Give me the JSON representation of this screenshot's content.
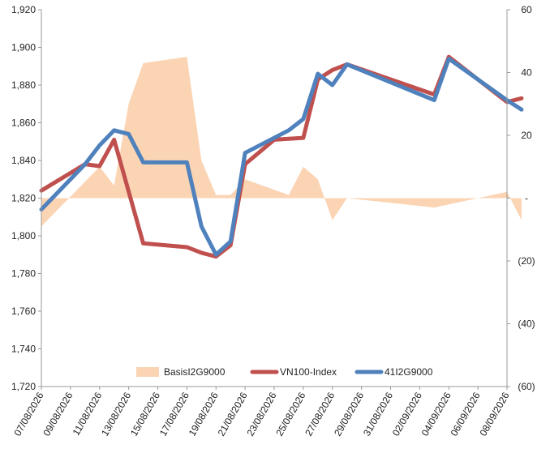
{
  "chart_data": {
    "type": "line",
    "title": "",
    "xlabel": "",
    "ylabel": "",
    "y_left": {
      "ylim": [
        1720,
        1920
      ],
      "ticks": [
        1720,
        1740,
        1760,
        1780,
        1800,
        1820,
        1840,
        1860,
        1880,
        1900,
        1920
      ],
      "tick_labels": [
        "1,720",
        "1,740",
        "1,760",
        "1,780",
        "1,800",
        "1,820",
        "1,840",
        "1,860",
        "1,880",
        "1,900",
        "1,920"
      ]
    },
    "y_right": {
      "ylim": [
        -60,
        60
      ],
      "ticks": [
        -60,
        -40,
        -20,
        0,
        20,
        40,
        60
      ],
      "tick_labels": [
        "(60)",
        "(40)",
        "(20)",
        "-",
        "20",
        "40",
        "60"
      ]
    },
    "x": [
      "07/08/2026",
      "08/08/2026",
      "09/08/2026",
      "10/08/2026",
      "11/08/2026",
      "12/08/2026",
      "13/08/2026",
      "14/08/2026",
      "15/08/2026",
      "16/08/2026",
      "17/08/2026",
      "18/08/2026",
      "19/08/2026",
      "20/08/2026",
      "21/08/2026",
      "22/08/2026",
      "23/08/2026",
      "24/08/2026",
      "25/08/2026",
      "26/08/2026",
      "27/08/2026",
      "28/08/2026",
      "29/08/2026",
      "30/08/2026",
      "31/08/2026",
      "01/09/2026",
      "02/09/2026",
      "03/09/2026",
      "04/09/2026",
      "05/09/2026",
      "06/09/2026",
      "07/09/2026",
      "08/09/2026"
    ],
    "x_tick_labels": [
      "07/08/2026",
      "09/08/2026",
      "11/08/2026",
      "13/08/2026",
      "15/08/2026",
      "17/08/2026",
      "19/08/2026",
      "21/08/2026",
      "23/08/2026",
      "25/08/2026",
      "27/08/2026",
      "29/08/2026",
      "31/08/2026",
      "02/09/2026",
      "04/09/2026",
      "06/09/2026",
      "08/09/2026"
    ],
    "series": [
      {
        "name": "BasisI2G9000",
        "type": "area",
        "axis": "right",
        "color": "#fbd4b4",
        "points": [
          [
            0,
            -9
          ],
          [
            4,
            10
          ],
          [
            5,
            4
          ],
          [
            6,
            30
          ],
          [
            7,
            43
          ],
          [
            10,
            45
          ],
          [
            11,
            12
          ],
          [
            12,
            1
          ],
          [
            13,
            1
          ],
          [
            14,
            6
          ],
          [
            17,
            1
          ],
          [
            18,
            10
          ],
          [
            19,
            6
          ],
          [
            20,
            -7
          ],
          [
            21,
            0
          ],
          [
            27,
            -3
          ],
          [
            28,
            -2
          ],
          [
            32,
            2
          ],
          [
            33,
            -7
          ]
        ]
      },
      {
        "name": "VN100-Index",
        "type": "line",
        "axis": "left",
        "color": "#c0504d",
        "points": [
          [
            0,
            1824
          ],
          [
            3,
            1838
          ],
          [
            4,
            1837
          ],
          [
            5,
            1851
          ],
          [
            7,
            1796
          ],
          [
            10,
            1794
          ],
          [
            11,
            1791
          ],
          [
            12,
            1789
          ],
          [
            13,
            1795
          ],
          [
            14,
            1838
          ],
          [
            16,
            1851
          ],
          [
            18,
            1852
          ],
          [
            19,
            1883
          ],
          [
            20,
            1888
          ],
          [
            21,
            1891
          ],
          [
            27,
            1875
          ],
          [
            28,
            1895
          ],
          [
            32,
            1871
          ],
          [
            33,
            1873
          ]
        ]
      },
      {
        "name": "41I2G9000",
        "type": "line",
        "axis": "left",
        "color": "#4f81bd",
        "points": [
          [
            0,
            1814
          ],
          [
            3,
            1838
          ],
          [
            4,
            1848
          ],
          [
            5,
            1856
          ],
          [
            6,
            1854
          ],
          [
            7,
            1839
          ],
          [
            10,
            1839
          ],
          [
            11,
            1805
          ],
          [
            12,
            1790
          ],
          [
            13,
            1797
          ],
          [
            14,
            1844
          ],
          [
            17,
            1856
          ],
          [
            18,
            1862
          ],
          [
            19,
            1886
          ],
          [
            20,
            1880
          ],
          [
            21,
            1891
          ],
          [
            27,
            1872
          ],
          [
            28,
            1894
          ],
          [
            32,
            1872
          ],
          [
            33,
            1867
          ]
        ]
      }
    ],
    "grid": false,
    "legend_position": "bottom-center"
  }
}
